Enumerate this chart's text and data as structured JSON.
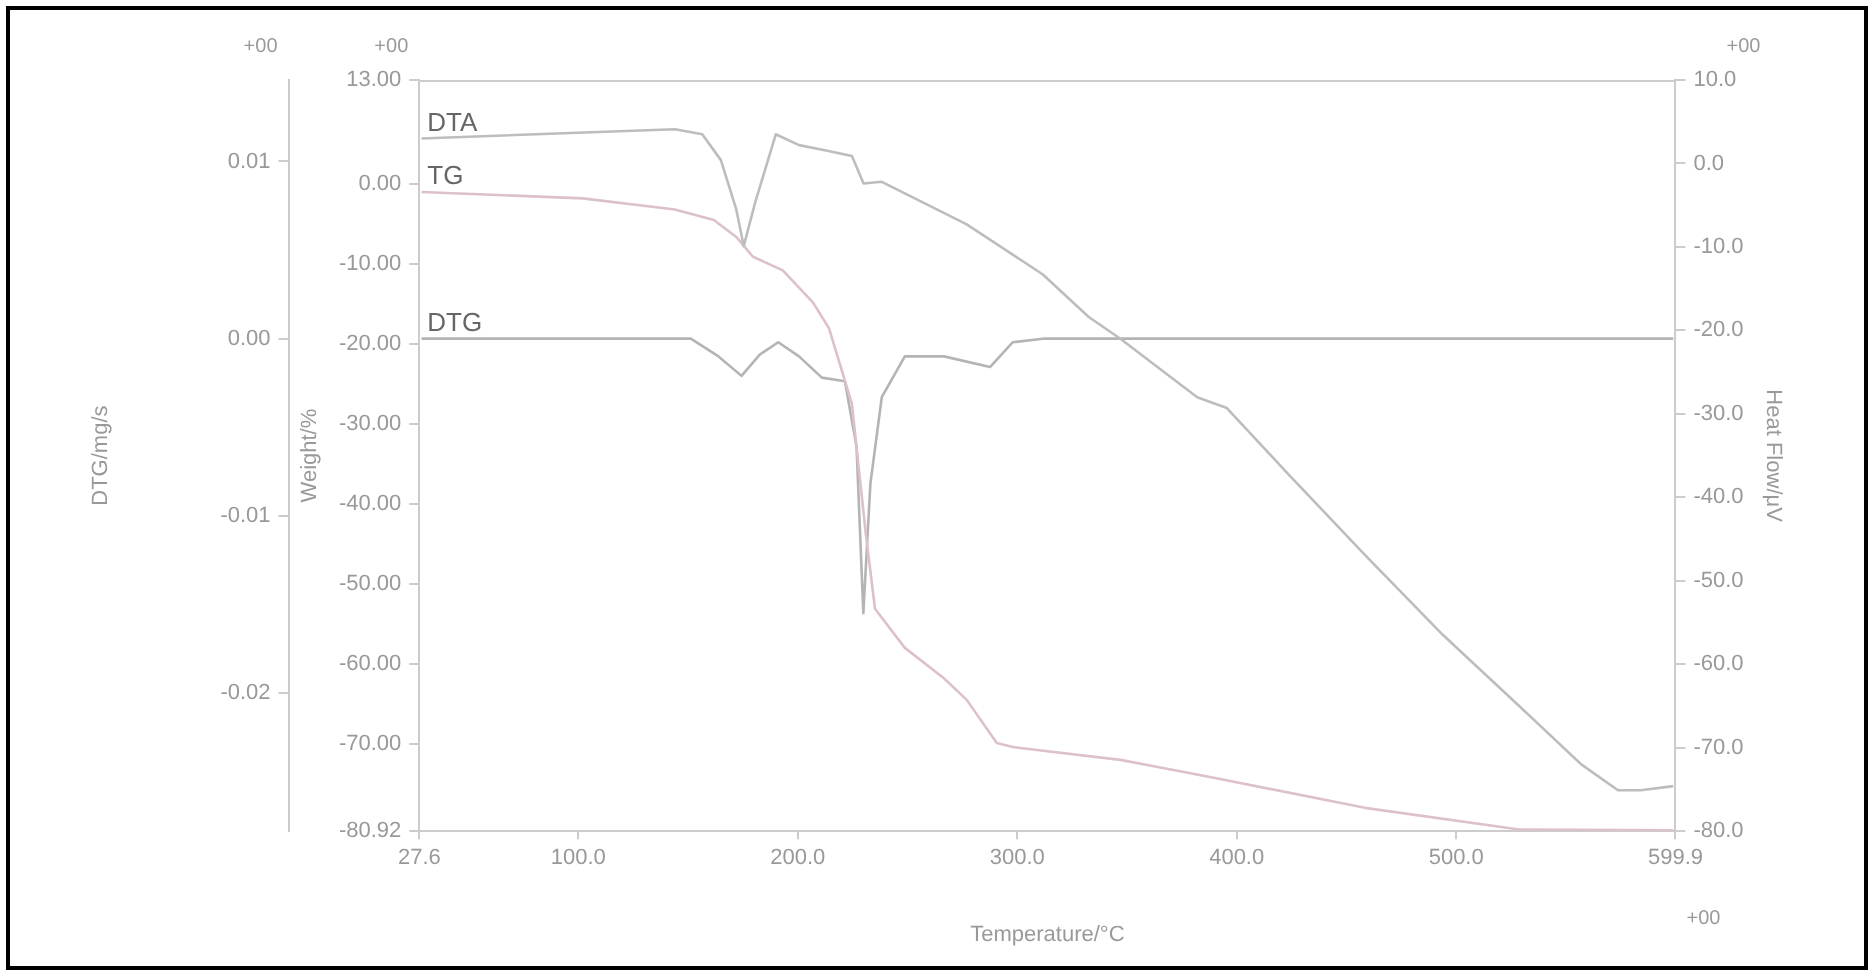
{
  "chart_data": {
    "type": "line",
    "xlabel": "Temperature/°C",
    "ylabel": "Weight/%",
    "y2label": "Heat Flow/μV",
    "y3label": "DTG/mg/s",
    "xlim": [
      27.6,
      599.9
    ],
    "xticks": [
      27.6,
      {
        "value": 100,
        "label": "100.0"
      },
      {
        "value": 200,
        "label": "200.0"
      },
      {
        "value": 300,
        "label": "300.0"
      },
      {
        "value": 400,
        "label": "400.0"
      },
      {
        "value": 500,
        "label": "500.0"
      },
      599.9
    ],
    "ylim": [
      -80.92,
      13
    ],
    "yticks": [
      {
        "value": 13,
        "label": "13.00"
      },
      {
        "value": 0,
        "label": "0.00"
      },
      {
        "value": -10,
        "label": "-10.00"
      },
      {
        "value": -20,
        "label": "-20.00"
      },
      {
        "value": -30,
        "label": "-30.00"
      },
      {
        "value": -40,
        "label": "-40.00"
      },
      {
        "value": -50,
        "label": "-50.00"
      },
      {
        "value": -60,
        "label": "-60.00"
      },
      {
        "value": -70,
        "label": "-70.00"
      },
      -80.92
    ],
    "y2lim": [
      -80,
      10
    ],
    "y2ticks": [
      {
        "value": 10,
        "label": "10.0"
      },
      {
        "value": 0,
        "label": "0.0"
      },
      {
        "value": -10,
        "label": "-10.0"
      },
      {
        "value": -20,
        "label": "-20.0"
      },
      {
        "value": -30,
        "label": "-30.0"
      },
      {
        "value": -40,
        "label": "-40.0"
      },
      {
        "value": -50,
        "label": "-50.0"
      },
      {
        "value": -60,
        "label": "-60.0"
      },
      {
        "value": -70,
        "label": "-70.0"
      },
      {
        "value": -80,
        "label": "-80.0"
      }
    ],
    "y3lim": [
      -0.0278,
      0.0146
    ],
    "y3ticks": [
      0.01,
      {
        "value": 0,
        "label": "0.00"
      },
      -0.01,
      -0.02
    ],
    "grid": false,
    "legend": false,
    "marker": "none",
    "line_style": "solid",
    "annotations": [
      "+00",
      "+00",
      "+00",
      "+00"
    ],
    "series": [
      {
        "name": "DTA",
        "type": "line",
        "axis": "y2",
        "color": "#bdbdbd",
        "x": [
          28.6,
          144,
          156.5,
          165,
          172,
          175.4,
          180.6,
          190,
          200.6,
          214,
          224.7,
          230,
          238.3,
          277,
          311.7,
          332.6,
          347,
          382,
          395.5,
          423.8,
          458.4,
          494,
          528.7,
          557,
          573.7,
          584,
          598.9
        ],
        "values": [
          3.0,
          4.1,
          3.5,
          0.4,
          -5.5,
          -9.9,
          -4.7,
          3.5,
          2.2,
          1.5,
          0.9,
          -2.4,
          -2.2,
          -7.3,
          -13.3,
          -18.4,
          -21.0,
          -28.0,
          -29.3,
          -37.3,
          -46.9,
          -56.5,
          -65.0,
          -72.0,
          -75.1,
          -75.1,
          -74.6
        ]
      },
      {
        "name": "TG",
        "type": "line",
        "axis": "y",
        "color": "#dcc0cc",
        "x": [
          28.6,
          102,
          144,
          161.8,
          172.3,
          179.6,
          193.2,
          206.9,
          214.2,
          224.7,
          231,
          235.2,
          248.8,
          266.6,
          277,
          290.7,
          298,
          347,
          389,
          458.4,
          528.7,
          598.9
        ],
        "values": [
          -1.0,
          -1.8,
          -3.2,
          -4.5,
          -6.7,
          -9.1,
          -10.8,
          -14.8,
          -18.0,
          -27.5,
          -43.7,
          -53.1,
          -58.0,
          -61.8,
          -64.5,
          -69.9,
          -70.4,
          -72.0,
          -74.2,
          -78.0,
          -80.7,
          -80.8
        ]
      },
      {
        "name": "DTG",
        "type": "line",
        "axis": "y3",
        "color": "#b4b4b4",
        "x": [
          28.6,
          151.3,
          163.9,
          174.4,
          182.7,
          191.1,
          200.6,
          211,
          221.5,
          226.8,
          229.9,
          233.1,
          238.3,
          248.8,
          266.6,
          287.6,
          298,
          311.7,
          598.9
        ],
        "values": [
          0,
          0,
          -0.001,
          -0.0021,
          -0.0009,
          -0.0002,
          -0.001,
          -0.0022,
          -0.0024,
          -0.0061,
          -0.0155,
          -0.0082,
          -0.0033,
          -0.001,
          -0.001,
          -0.0016,
          -0.0002,
          0,
          0
        ]
      }
    ]
  }
}
